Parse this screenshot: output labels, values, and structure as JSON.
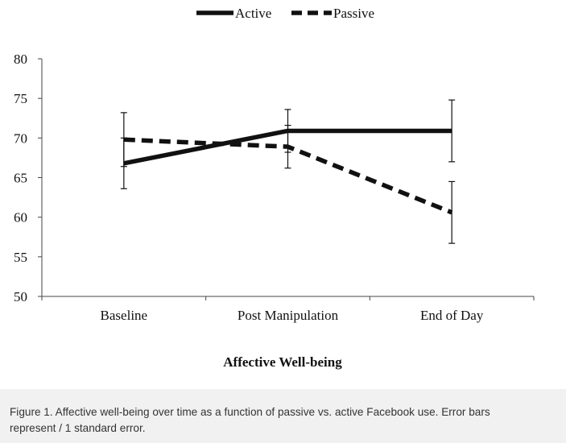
{
  "chart_data": {
    "type": "line",
    "categories": [
      "Baseline",
      "Post Manipulation",
      "End of Day"
    ],
    "series": [
      {
        "name": "Active",
        "values": [
          66.8,
          70.9,
          70.9
        ],
        "error": [
          3.2,
          2.7,
          3.9
        ],
        "line_style": "solid"
      },
      {
        "name": "Passive",
        "values": [
          69.8,
          68.9,
          60.6
        ],
        "error": [
          3.4,
          2.7,
          3.9
        ],
        "line_style": "dashed"
      }
    ],
    "title": "",
    "xlabel": "Affective Well-being",
    "ylabel": "",
    "ylim": [
      50,
      80
    ],
    "yticks": [
      "50",
      "55",
      "60",
      "65",
      "70",
      "75",
      "80"
    ],
    "grid": false,
    "legend_position": "top-center",
    "line_color": "#111111"
  },
  "caption": {
    "line1": "Figure 1. Affective well-being over time as a function of passive vs. active Facebook use. Error bars",
    "line2": "represent / 1 standard error."
  }
}
